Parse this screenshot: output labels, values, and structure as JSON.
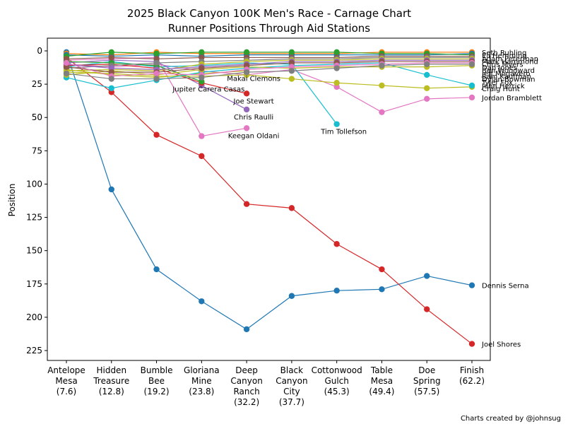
{
  "chart_data": {
    "type": "line",
    "title": "2025 Black Canyon 100K Men's Race - Carnage Chart",
    "subtitle": "Runner Positions Through Aid Stations",
    "xlabel": "",
    "ylabel": "Position",
    "ylim": [
      230,
      -10
    ],
    "y_inverted": true,
    "yticks": [
      0,
      25,
      50,
      75,
      100,
      125,
      150,
      175,
      200,
      225
    ],
    "categories": [
      "Antelope\nMesa\n(7.6)",
      "Hidden\nTreasure\n(12.8)",
      "Bumble\nBee\n(19.2)",
      "Gloriana\nMine\n(23.8)",
      "Deep\nCanyon\nRanch\n(32.2)",
      "Black\nCanyon\nCity\n(37.7)",
      "Cottonwood\nGulch\n(45.3)",
      "Table\nMesa\n(49.4)",
      "Doe\nSpring\n(57.5)",
      "Finish\n(62.2)"
    ],
    "series": [
      {
        "name": "Dennis Serna",
        "color": "#1f77b4",
        "values": [
          1,
          104,
          164,
          188,
          209,
          184,
          180,
          179,
          169,
          176
        ],
        "label": "Dennis Serna"
      },
      {
        "name": "Joel Shores",
        "color": "#d62728",
        "values": [
          5,
          31,
          63,
          79,
          115,
          118,
          145,
          164,
          194,
          220
        ],
        "label": "Joel Shores"
      },
      {
        "name": "Jordan Bramblett",
        "color": "#e377c2",
        "values": [
          10,
          12,
          10,
          15,
          18,
          14,
          27,
          46,
          36,
          35
        ],
        "label": "Jordan Bramblett"
      },
      {
        "name": "Tim Tollefson",
        "color": "#17becf",
        "values": [
          12,
          8,
          12,
          11,
          9,
          10,
          55,
          null,
          null,
          null
        ],
        "label": "Tim Tollefson"
      },
      {
        "name": "Keegan Oldani",
        "color": "#e377c2",
        "values": [
          7,
          6,
          5,
          64,
          58,
          null,
          null,
          null,
          null,
          null
        ],
        "label": "Keegan Oldani"
      },
      {
        "name": "Chris Raulli",
        "color": "#9467bd",
        "values": [
          9,
          7,
          8,
          26,
          44,
          null,
          null,
          null,
          null,
          null
        ],
        "label": "Chris Raulli"
      },
      {
        "name": "Joe Stewart",
        "color": "#d62728",
        "values": [
          11,
          10,
          13,
          24,
          32,
          null,
          null,
          null,
          null,
          null
        ],
        "label": "Joe Stewart"
      },
      {
        "name": "Jupiter Carera Casas",
        "color": "#2ca02c",
        "values": [
          8,
          9,
          11,
          23,
          null,
          null,
          null,
          null,
          null,
          null
        ],
        "label": "Jupiter Carera Casas"
      },
      {
        "name": "Makai Clemons",
        "color": "#bcbd22",
        "values": [
          14,
          18,
          20,
          17,
          15,
          null,
          null,
          null,
          null,
          null
        ],
        "label": "Makai Clemons"
      },
      {
        "name": "Craig Hunt",
        "color": "#bcbd22",
        "values": [
          16,
          17,
          19,
          19,
          18,
          21,
          24,
          26,
          28,
          27
        ],
        "label": "Craig Hunt"
      },
      {
        "name": "John Herrick",
        "color": "#17becf",
        "values": [
          20,
          28,
          22,
          16,
          13,
          11,
          10,
          9,
          18,
          26
        ],
        "label": "John Herrick"
      },
      {
        "name": "Tyler Fox",
        "color": "#bcbd22",
        "values": [
          18,
          15,
          18,
          14,
          12,
          13,
          12,
          12,
          12,
          11
        ],
        "label": "Tyler Fox"
      },
      {
        "name": "Seth Ruhling",
        "color": "#ff7f0e",
        "values": [
          2,
          3,
          1,
          2,
          2,
          2,
          2,
          1,
          1,
          1
        ],
        "label": "Seth Ruhling"
      },
      {
        "name": "Eli Hemming",
        "color": "#1f77b4",
        "values": [
          3,
          4,
          3,
          4,
          3,
          3,
          3,
          3,
          3,
          2
        ],
        "label": "Eli Hemming"
      },
      {
        "name": "Adam Peterman",
        "color": "#2ca02c",
        "values": [
          4,
          1,
          2,
          1,
          1,
          1,
          1,
          2,
          2,
          3
        ],
        "label": "Adam Peterman"
      },
      {
        "name": "Mark Hammond",
        "color": "#8c564b",
        "values": [
          6,
          5,
          6,
          5,
          5,
          5,
          5,
          4,
          4,
          4
        ],
        "label": "Mark Hammond"
      },
      {
        "name": "Chris Myers",
        "color": "#7f7f7f",
        "values": [
          13,
          11,
          9,
          8,
          7,
          6,
          6,
          5,
          5,
          5
        ],
        "label": "Chris Myers"
      },
      {
        "name": "Dan Jones",
        "color": "#bcbd22",
        "values": [
          15,
          14,
          15,
          10,
          8,
          7,
          7,
          6,
          6,
          6
        ],
        "label": "Dan Jones"
      },
      {
        "name": "Ben Woodward",
        "color": "#9467bd",
        "values": [
          10,
          13,
          14,
          12,
          10,
          8,
          8,
          7,
          7,
          7
        ],
        "label": "Ben Woodward"
      },
      {
        "name": "Jeff Mogavero",
        "color": "#8c564b",
        "values": [
          12,
          16,
          16,
          13,
          11,
          9,
          9,
          8,
          8,
          8
        ],
        "label": "Jeff Mogavero"
      },
      {
        "name": "Sam Kaufman",
        "color": "#e377c2",
        "values": [
          9,
          19,
          17,
          18,
          14,
          12,
          11,
          10,
          9,
          9
        ],
        "label": "Sam Kaufman"
      },
      {
        "name": "Dylan Bowman",
        "color": "#7f7f7f",
        "values": [
          17,
          21,
          21,
          20,
          16,
          15,
          13,
          11,
          10,
          10
        ],
        "label": "Dylan Bowman"
      }
    ],
    "credit": "Charts created by @johnsug"
  }
}
